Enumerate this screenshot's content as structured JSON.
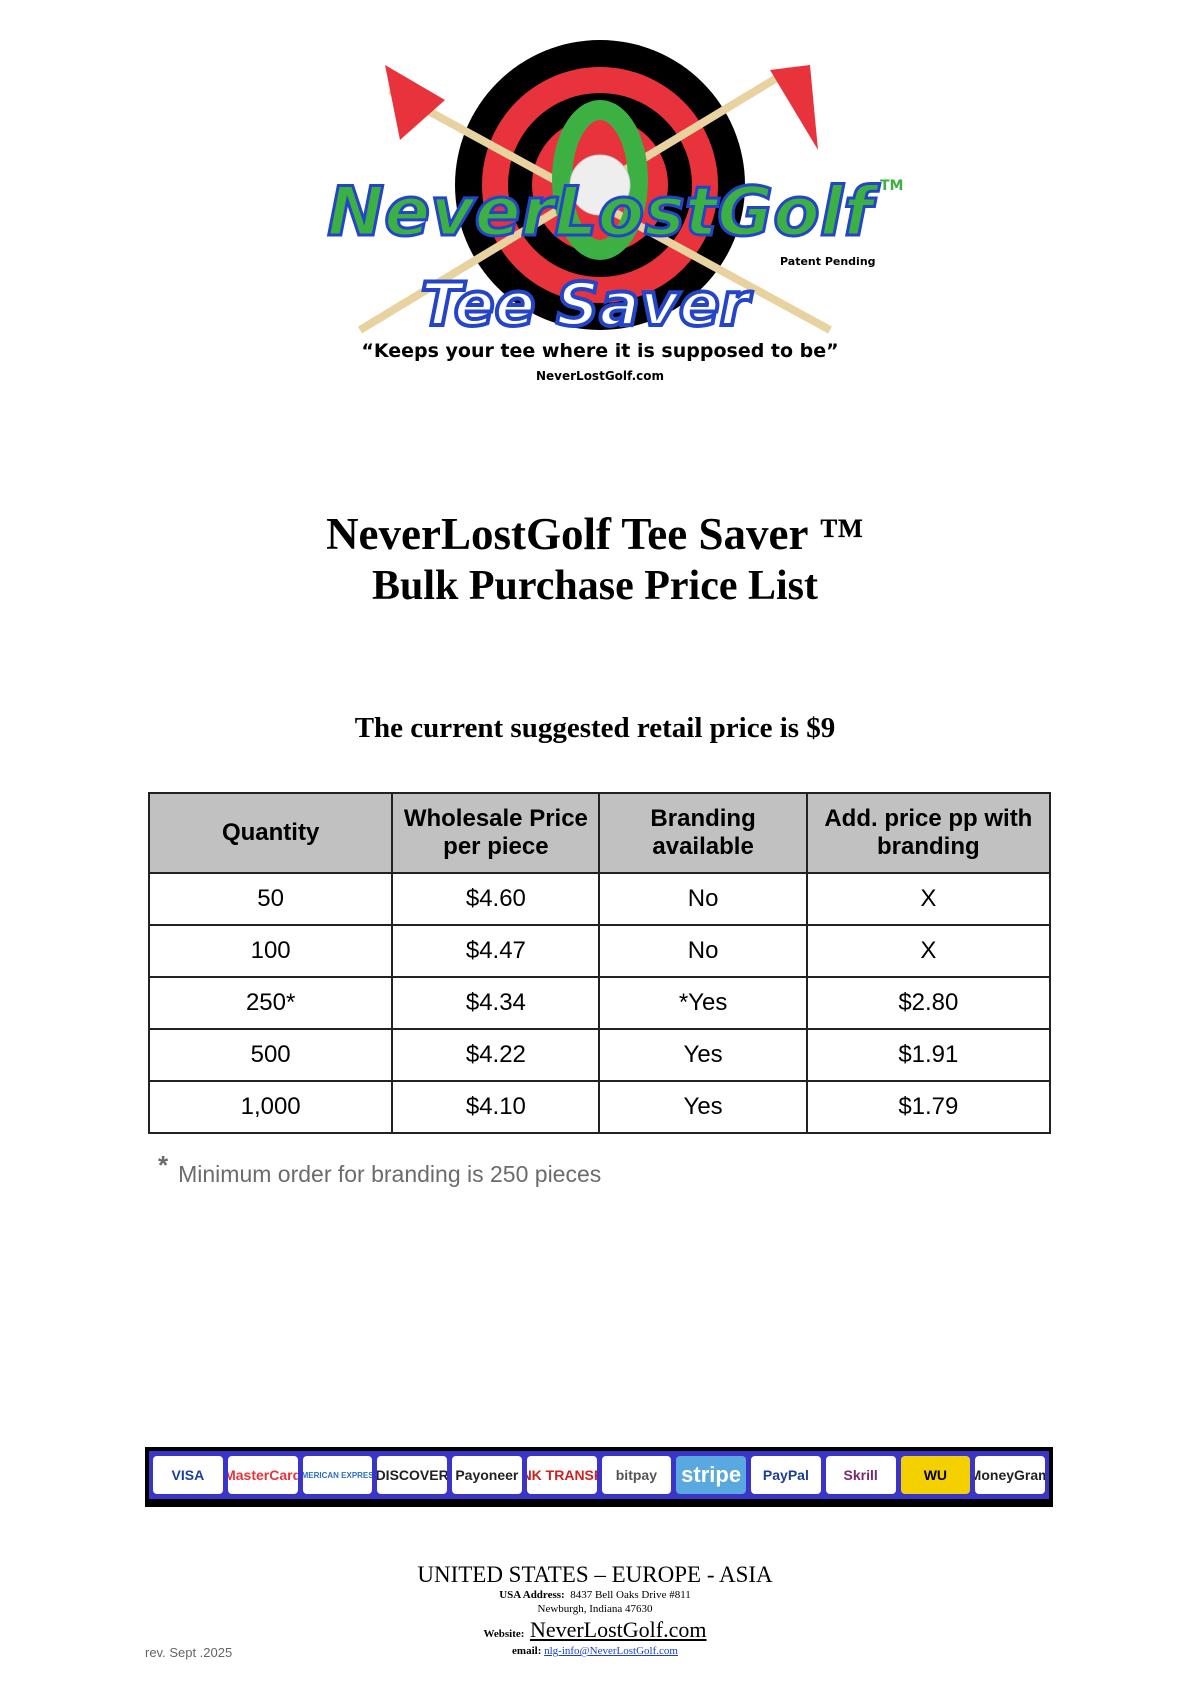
{
  "logo": {
    "brand": "NeverLostGolf",
    "product": "Tee Saver",
    "tm": "TM",
    "patent": "Patent Pending",
    "tagline": "“Keeps your tee  where it is supposed to be”",
    "site": "NeverLostGolf.com"
  },
  "title": {
    "line1": "NeverLostGolf Tee Saver ™",
    "line2": "Bulk Purchase Price List"
  },
  "retail": "The current suggested retail price is $9",
  "table": {
    "headers": [
      "Quantity",
      "Wholesale Price per piece",
      "Branding available",
      "Add. price pp with branding"
    ],
    "rows": [
      [
        "50",
        "$4.60",
        "No",
        "X"
      ],
      [
        "100",
        "$4.47",
        "No",
        "X"
      ],
      [
        "250*",
        "$4.34",
        "*Yes",
        "$2.80"
      ],
      [
        "500",
        "$4.22",
        "Yes",
        "$1.91"
      ],
      [
        "1,000",
        "$4.10",
        "Yes",
        "$1.79"
      ]
    ]
  },
  "footnote": {
    "star": "*",
    "text": "Minimum order for branding is 250 pieces"
  },
  "payments": [
    "VISA",
    "MasterCard",
    "AMERICAN EXPRESS",
    "DISCOVER",
    "Payoneer",
    "BANK TRANSFER",
    "bitpay",
    "stripe",
    "PayPal",
    "Skrill",
    "WU",
    "MoneyGram"
  ],
  "colors": {
    "header_bg": "#c0c1c0",
    "payment_bar": "#3a35c8",
    "logo_green": "#3cb043",
    "logo_red": "#e8333c"
  },
  "footer": {
    "regions": "UNITED STATES – EUROPE - ASIA",
    "address_label": "USA Address:",
    "address1": "8437 Bell Oaks Drive #811",
    "address2": "Newburgh, Indiana 47630",
    "website_label": "Website:",
    "website": "NeverLostGolf.com",
    "email_label": "email:",
    "email": "nlg-info@NeverLostGolf.com",
    "rev": "rev. Sept .2025"
  }
}
